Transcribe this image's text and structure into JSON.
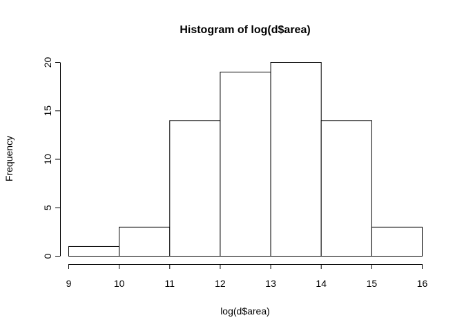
{
  "chart_data": {
    "type": "bar",
    "title": "Histogram of log(d$area)",
    "xlabel": "log(d$area)",
    "ylabel": "Frequency",
    "bins": [
      {
        "start": 9,
        "end": 10,
        "count": 1
      },
      {
        "start": 10,
        "end": 11,
        "count": 3
      },
      {
        "start": 11,
        "end": 12,
        "count": 14
      },
      {
        "start": 12,
        "end": 13,
        "count": 19
      },
      {
        "start": 13,
        "end": 14,
        "count": 20
      },
      {
        "start": 14,
        "end": 15,
        "count": 14
      },
      {
        "start": 15,
        "end": 16,
        "count": 3
      }
    ],
    "xticks": [
      "9",
      "10",
      "11",
      "12",
      "13",
      "14",
      "15",
      "16"
    ],
    "yticks": [
      "0",
      "5",
      "10",
      "15",
      "20"
    ],
    "xlim": [
      9,
      16
    ],
    "ylim": [
      0,
      20
    ],
    "grid": false,
    "bar_fill": "#ffffff",
    "bar_stroke": "#000000"
  }
}
